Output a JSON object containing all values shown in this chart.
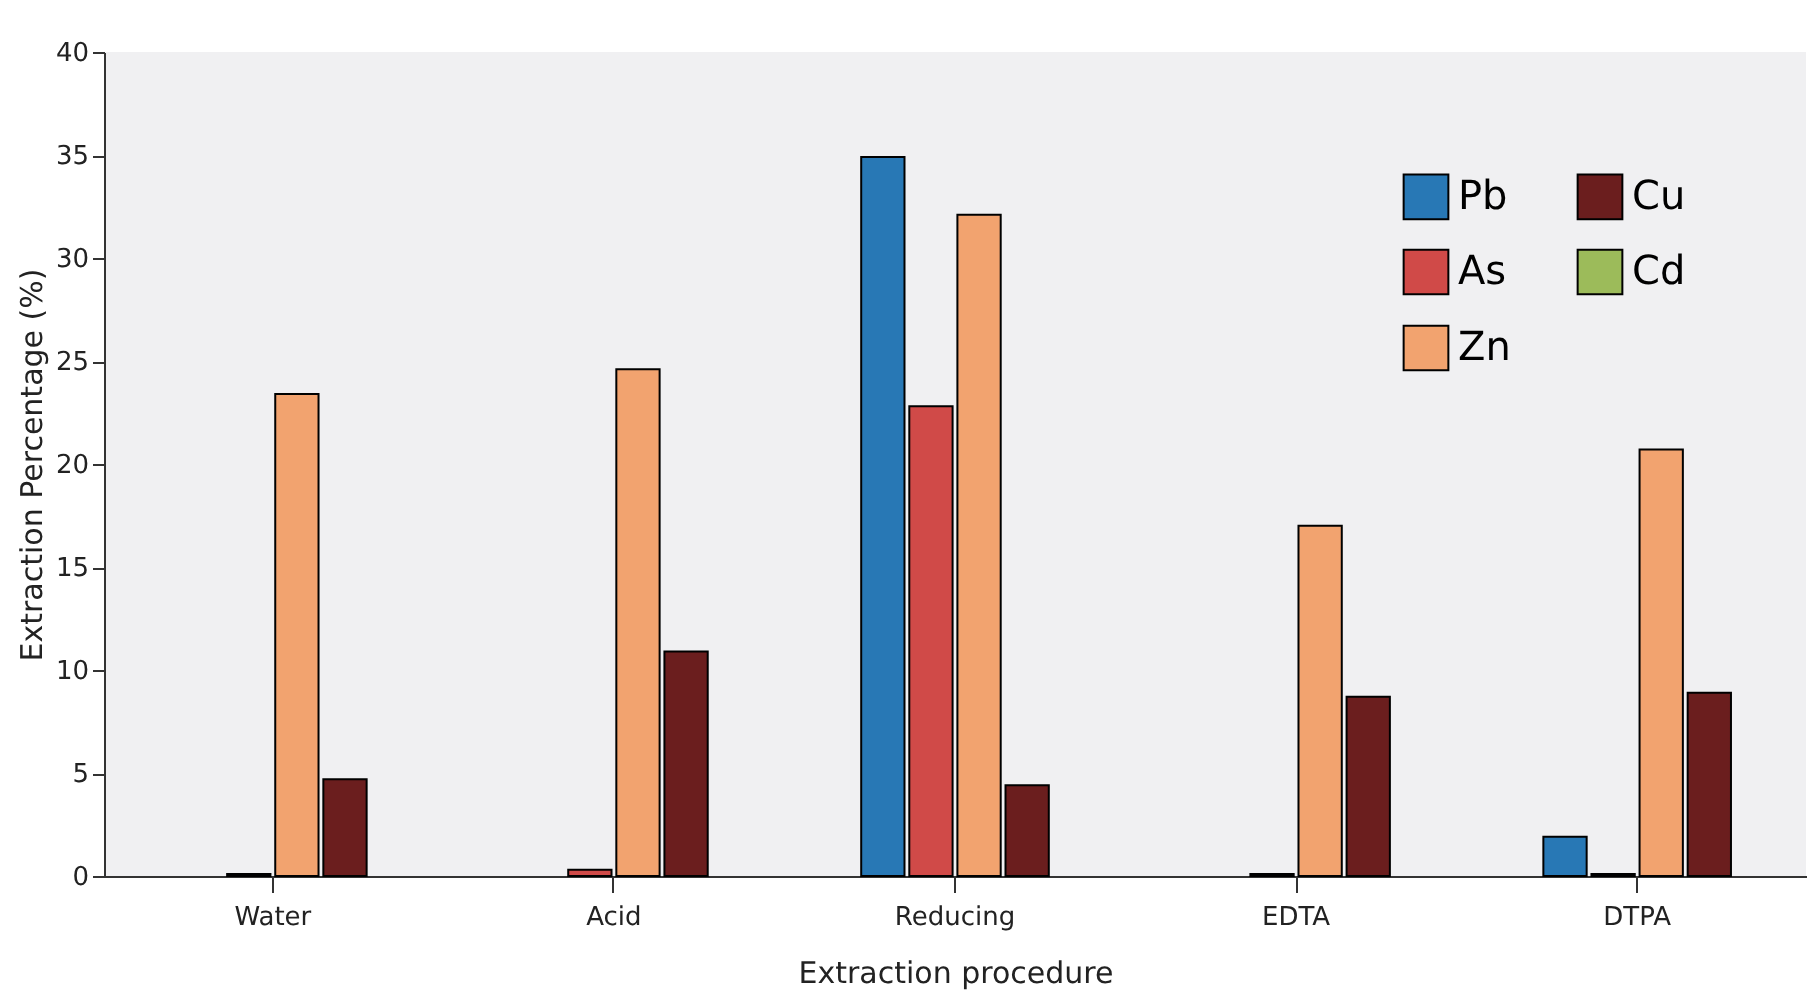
{
  "chart_data": {
    "type": "bar",
    "xlabel": "Extraction procedure",
    "ylabel": "Extraction Percentage (%)",
    "categories": [
      "Water",
      "Acid",
      "Reducing",
      "EDTA",
      "DTPA"
    ],
    "series": [
      {
        "name": "Pb",
        "color": "#2878b5",
        "values": [
          null,
          null,
          34.9,
          null,
          1.9
        ]
      },
      {
        "name": "As",
        "color": "#d04a48",
        "values": [
          0.1,
          0.3,
          22.8,
          0.1,
          0.1
        ]
      },
      {
        "name": "Zn",
        "color": "#f2a36f",
        "values": [
          23.4,
          24.6,
          32.1,
          17.0,
          20.7
        ]
      },
      {
        "name": "Cu",
        "color": "#6b1e1e",
        "values": [
          4.7,
          10.9,
          4.4,
          8.7,
          8.9
        ]
      },
      {
        "name": "Cd",
        "color": "#9cbb5a",
        "values": [
          null,
          null,
          null,
          null,
          null
        ]
      }
    ],
    "ylim": [
      0,
      40
    ],
    "yticks": [
      0,
      5,
      10,
      15,
      20,
      25,
      30,
      35,
      40
    ],
    "grid": false,
    "legend": "top right"
  }
}
